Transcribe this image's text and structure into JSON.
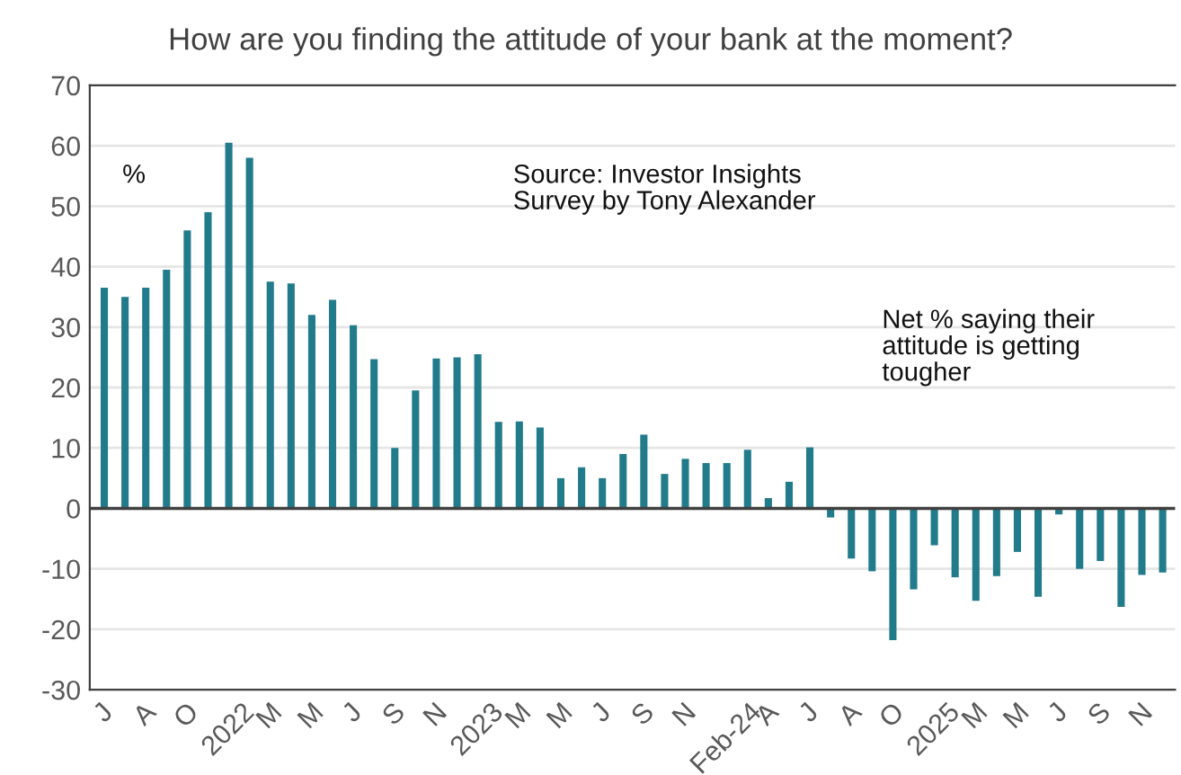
{
  "chart_data": {
    "type": "bar",
    "title": "How are you finding the attitude of your bank at the moment?",
    "categories": [
      "J",
      null,
      "A",
      null,
      "O",
      null,
      "2022",
      null,
      "M",
      null,
      "M",
      null,
      "J",
      null,
      "S",
      null,
      "N",
      null,
      "2023",
      null,
      "M",
      null,
      "M",
      null,
      "J",
      null,
      "S",
      null,
      "N",
      null,
      "Feb-24",
      null,
      "A",
      null,
      "J",
      null,
      "A",
      null,
      "O",
      null,
      "2025",
      null,
      "M",
      null,
      "M",
      null,
      "J",
      null,
      "S",
      null,
      "N",
      null
    ],
    "values": [
      36.5,
      35,
      36.5,
      39.5,
      46,
      49,
      60.5,
      58,
      37.5,
      37.2,
      32,
      34.5,
      30.3,
      24.7,
      10,
      19.5,
      24.8,
      25,
      25.5,
      14.3,
      14.4,
      13.4,
      5,
      6.8,
      5,
      9,
      12.2,
      5.7,
      8.2,
      7.5,
      7.5,
      9.7,
      1.7,
      4.4,
      10.1,
      -1.5,
      -8.3,
      -10.4,
      -21.8,
      -13.4,
      -6.1,
      -11.4,
      -15.3,
      -11.2,
      -7.2,
      -14.6,
      -1,
      -10,
      -8.7,
      -16.3,
      -11,
      -10.6
    ],
    "color": "#217b8a",
    "ylim": [
      -30,
      70
    ],
    "yticks": [
      -30,
      -20,
      -10,
      0,
      10,
      20,
      30,
      40,
      50,
      60,
      70
    ],
    "grid": "y",
    "legend": false,
    "ref_lines": [
      {
        "axis": "y",
        "value": 0,
        "color": "#404040"
      }
    ],
    "annotations": [
      "%",
      "Source: Investor Insights\nSurvey by Tony Alexander",
      "Net % saying their\nattitude is getting\ntougher"
    ]
  }
}
